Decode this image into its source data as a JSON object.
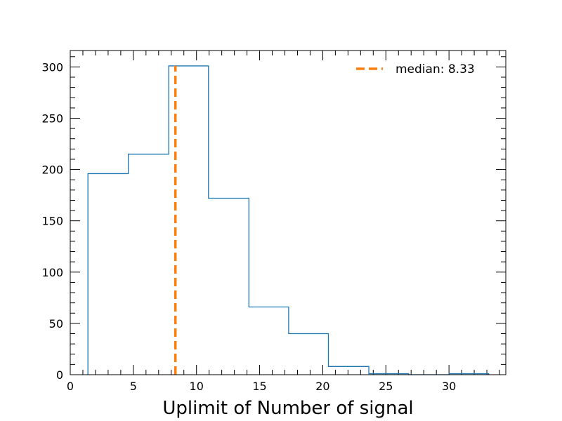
{
  "chart_data": {
    "type": "histogram",
    "xlabel": "Uplimit of Number of signal",
    "ylabel": "",
    "xlim": [
      0,
      34.5
    ],
    "ylim": [
      0,
      316
    ],
    "x_ticks": [
      0,
      5,
      10,
      15,
      20,
      25,
      30
    ],
    "y_ticks": [
      0,
      50,
      100,
      150,
      200,
      250,
      300
    ],
    "bin_edges": [
      1.4,
      4.6,
      7.8,
      10.95,
      14.15,
      17.3,
      20.45,
      23.65,
      26.8,
      30.0,
      33.15
    ],
    "counts": [
      196,
      215,
      301,
      172,
      66,
      40,
      8,
      1,
      0,
      1
    ],
    "histogram_color": "#1f77b4",
    "median": {
      "value": 8.33,
      "color": "#ff7f0e",
      "legend_label": "median:  8.33"
    },
    "legend_position": "top-right",
    "grid": false
  }
}
